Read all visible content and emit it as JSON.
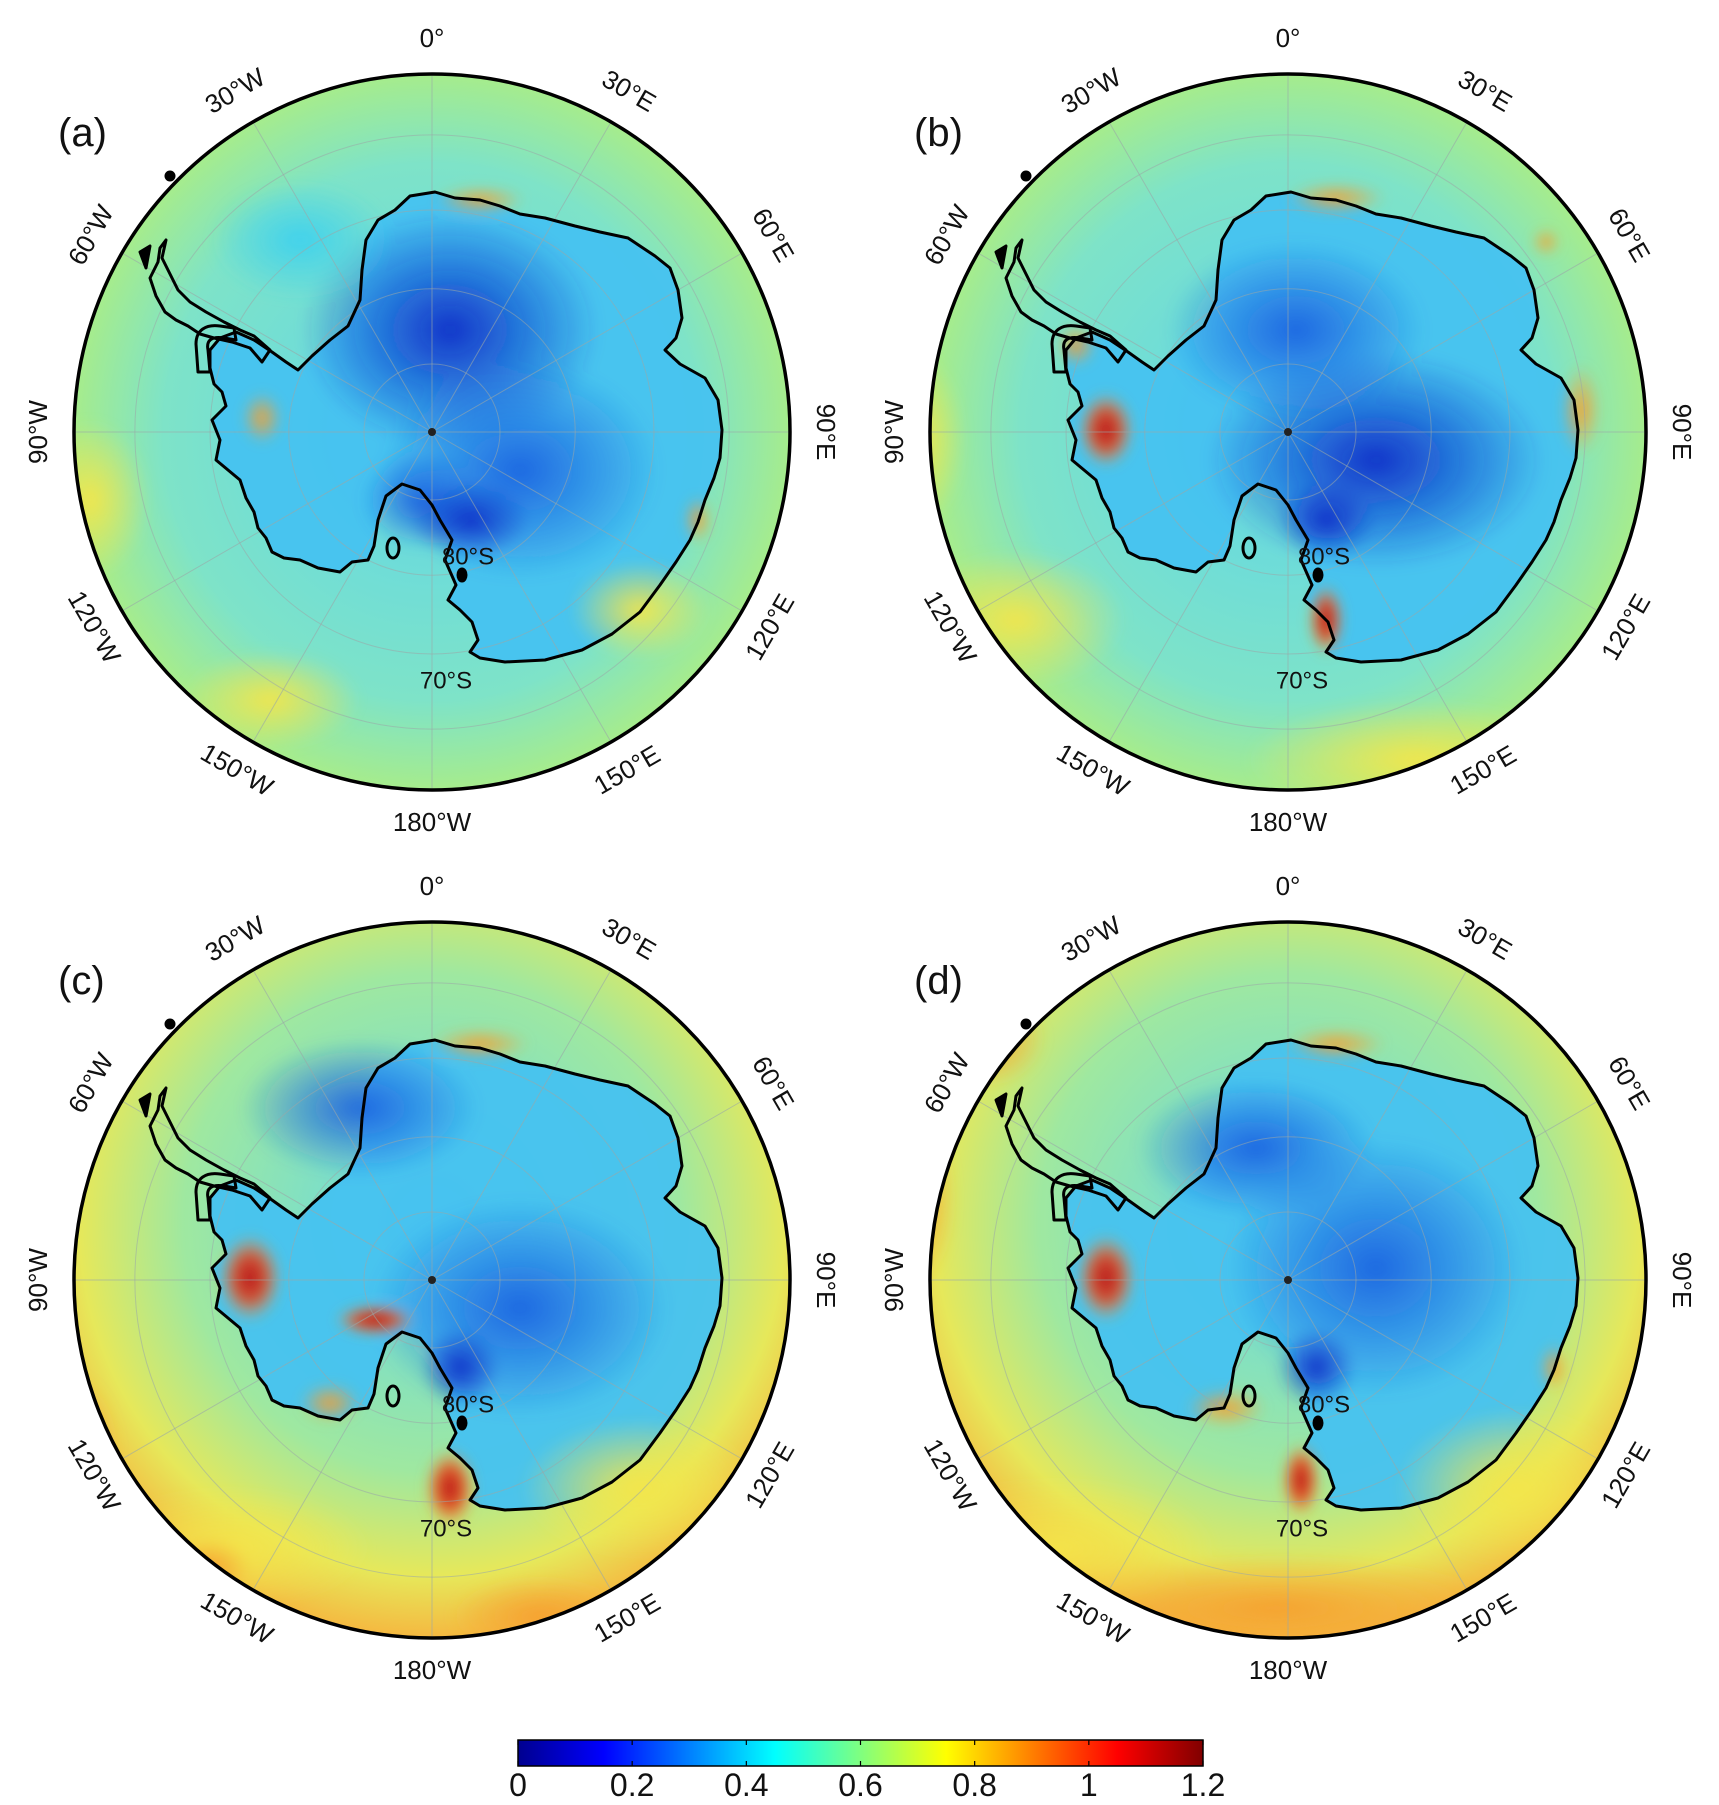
{
  "panels": [
    {
      "label": "(a)",
      "variant": "a"
    },
    {
      "label": "(b)",
      "variant": "b"
    },
    {
      "label": "(c)",
      "variant": "c"
    },
    {
      "label": "(d)",
      "variant": "d"
    }
  ],
  "graticule": {
    "longitudes": [
      {
        "deg": 0,
        "label": "0°"
      },
      {
        "deg": 30,
        "label": "30°E"
      },
      {
        "deg": 60,
        "label": "60°E"
      },
      {
        "deg": 90,
        "label": "90°E"
      },
      {
        "deg": 120,
        "label": "120°E"
      },
      {
        "deg": 150,
        "label": "150°E"
      },
      {
        "deg": 180,
        "label": "180°W"
      },
      {
        "deg": -150,
        "label": "150°W"
      },
      {
        "deg": -120,
        "label": "120°W"
      },
      {
        "deg": -90,
        "label": "90°W"
      },
      {
        "deg": -60,
        "label": "60°W"
      },
      {
        "deg": -30,
        "label": "30°W"
      }
    ],
    "latitudes": [
      {
        "deg": -80,
        "label": "80°S"
      },
      {
        "deg": -70,
        "label": "70°S"
      }
    ]
  },
  "colorbar": {
    "min": 0,
    "max": 1.2,
    "ticks": [
      "0",
      "0.2",
      "0.4",
      "0.6",
      "0.8",
      "1",
      "1.2"
    ],
    "colormap": [
      "#00008f",
      "#0000ff",
      "#00ffff",
      "#ffff00",
      "#ff0000",
      "#800000"
    ]
  }
}
